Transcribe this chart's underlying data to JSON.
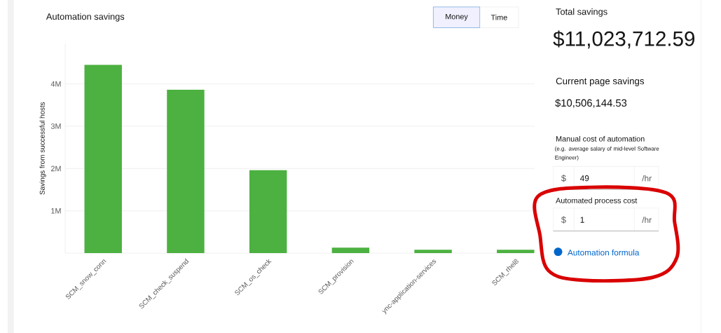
{
  "chart_data": {
    "type": "bar",
    "title": "Automation savings",
    "ylabel": "Savings from successful hosts",
    "categories": [
      "SCM_snow_conn",
      "SCM_check_suspend",
      "SCM_os_check",
      "SCM_provision",
      "ync-application-services",
      "SCM_rhel8"
    ],
    "values": [
      4450000,
      3860000,
      1960000,
      130000,
      80000,
      80000
    ],
    "color": "#4cb140",
    "ylim": [
      0,
      4950000
    ],
    "yticks": [
      {
        "value": 1000000,
        "label": "1M"
      },
      {
        "value": 2000000,
        "label": "2M"
      },
      {
        "value": 3000000,
        "label": "3M"
      },
      {
        "value": 4000000,
        "label": "4M"
      }
    ],
    "grid": "y",
    "annotations": [
      "Money",
      "Time",
      "Total savings",
      "$11,023,712.59",
      "Current page savings",
      "$10,506,144.53",
      "Manual cost of automation",
      "(e.g. average salary of mid-level Software Engineer)",
      "$",
      "49",
      "/hr",
      "Automated process cost",
      "$",
      "1",
      "/hr",
      "Automation formula"
    ]
  }
}
